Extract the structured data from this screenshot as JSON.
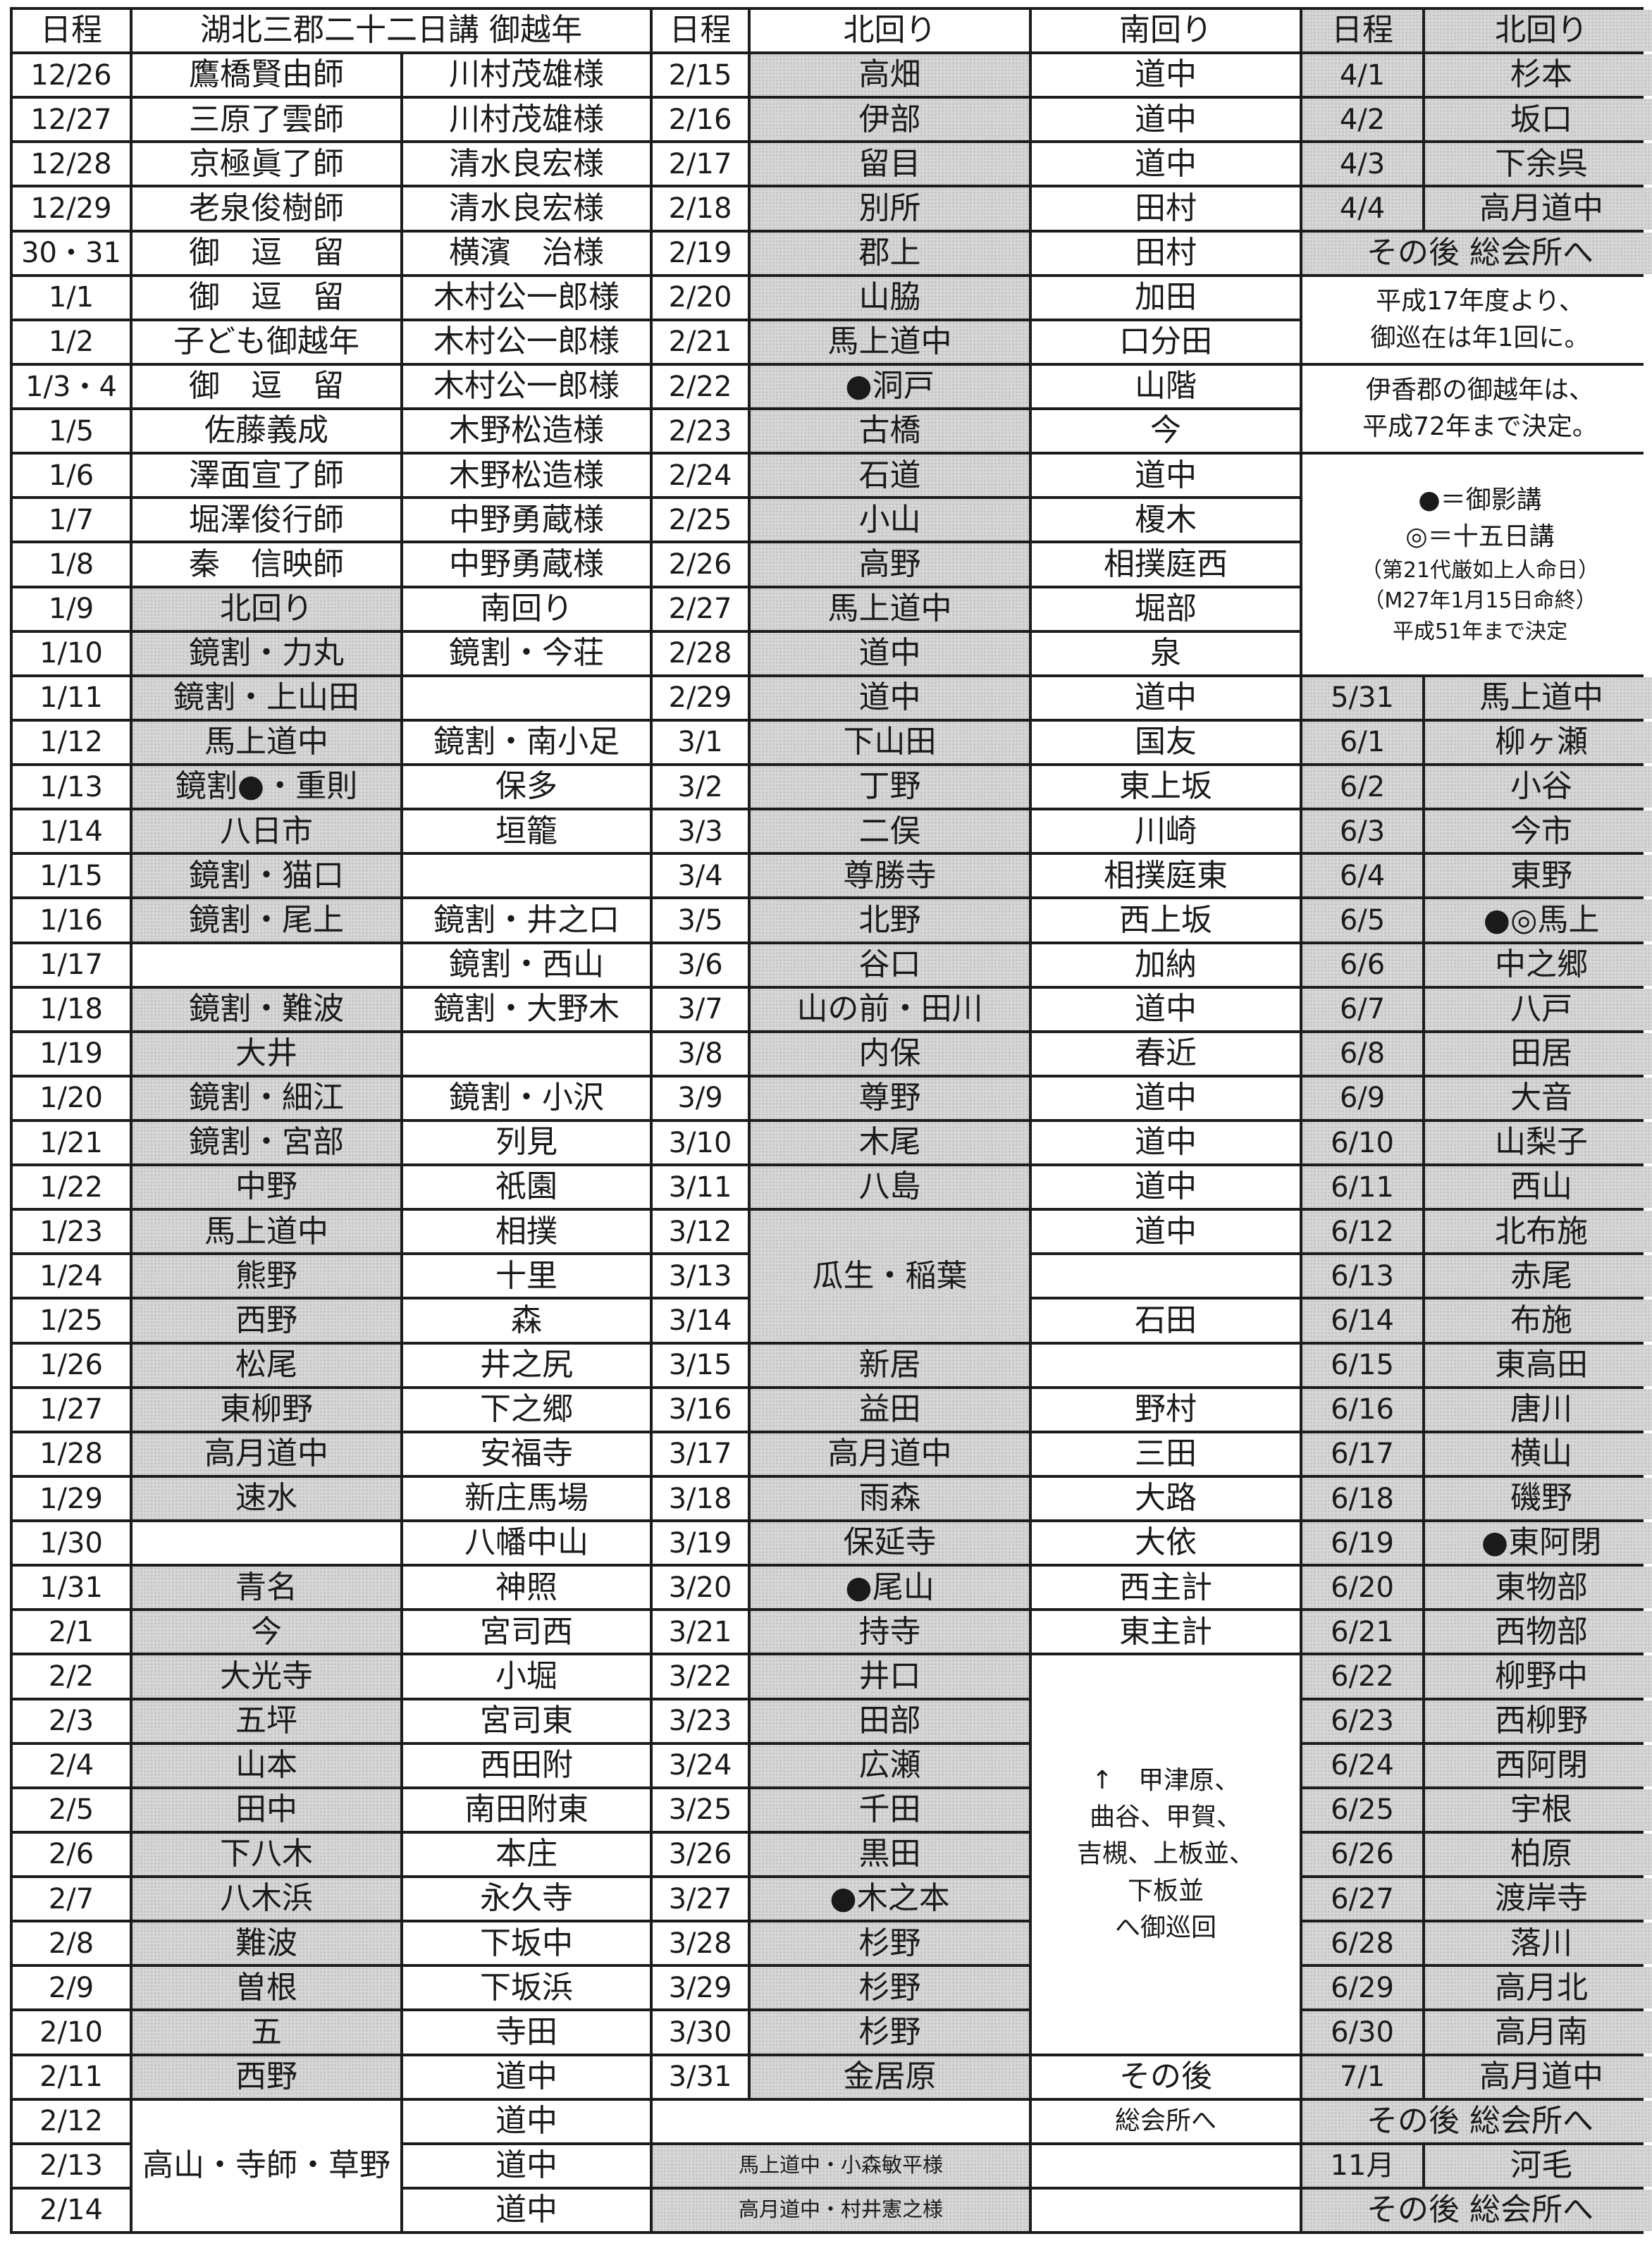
{
  "header": {
    "date": "日程",
    "title": "湖北三郡二十二日講 御越年",
    "date2": "日程",
    "north2": "北回り",
    "south2": "南回り",
    "date3": "日程",
    "north3": "北回り"
  },
  "left": {
    "top_rows": [
      {
        "date": "12/26",
        "host": "鷹橋賢由師",
        "sponsor": "川村茂雄様"
      },
      {
        "date": "12/27",
        "host": "三原了雲師",
        "sponsor": "川村茂雄様"
      },
      {
        "date": "12/28",
        "host": "京極眞了師",
        "sponsor": "清水良宏様"
      },
      {
        "date": "12/29",
        "host": "老泉俊樹師",
        "sponsor": "清水良宏様"
      },
      {
        "date": "30・31",
        "host": "御　逗　留",
        "sponsor": "横濱　治様"
      },
      {
        "date": "1/1",
        "host": "御　逗　留",
        "sponsor": "木村公一郎様"
      },
      {
        "date": "1/2",
        "host": "子ども御越年",
        "sponsor": "木村公一郎様"
      },
      {
        "date": "1/3・4",
        "host": "御　逗　留",
        "sponsor": "木村公一郎様"
      },
      {
        "date": "1/5",
        "host": "佐藤義成",
        "sponsor": "木野松造様"
      },
      {
        "date": "1/6",
        "host": "澤面宣了師",
        "sponsor": "木野松造様"
      },
      {
        "date": "1/7",
        "host": "堀澤俊行師",
        "sponsor": "中野勇蔵様"
      },
      {
        "date": "1/8",
        "host": "秦　信映師",
        "sponsor": "中野勇蔵様"
      }
    ],
    "subheader": {
      "date": "1/9",
      "north": "北回り",
      "south": "南回り"
    },
    "rows": [
      {
        "date": "1/10",
        "north": "鏡割・力丸",
        "south": "鏡割・今荘"
      },
      {
        "date": "1/11",
        "north": "鏡割・上山田",
        "south": ""
      },
      {
        "date": "1/12",
        "north": "馬上道中",
        "south": "鏡割・南小足"
      },
      {
        "date": "1/13",
        "north": "鏡割●・重則",
        "south": "保多"
      },
      {
        "date": "1/14",
        "north": "八日市",
        "south": "垣籠"
      },
      {
        "date": "1/15",
        "north": "鏡割・猫口",
        "south": ""
      },
      {
        "date": "1/16",
        "north": "鏡割・尾上",
        "south": "鏡割・井之口"
      },
      {
        "date": "1/17",
        "north": "",
        "south": "鏡割・西山"
      },
      {
        "date": "1/18",
        "north": "鏡割・難波",
        "south": "鏡割・大野木"
      },
      {
        "date": "1/19",
        "north": "大井",
        "south": ""
      },
      {
        "date": "1/20",
        "north": "鏡割・細江",
        "south": "鏡割・小沢"
      },
      {
        "date": "1/21",
        "north": "鏡割・宮部",
        "south": "列見"
      },
      {
        "date": "1/22",
        "north": "中野",
        "south": "祇園"
      },
      {
        "date": "1/23",
        "north": "馬上道中",
        "south": "相撲"
      },
      {
        "date": "1/24",
        "north": "熊野",
        "south": "十里"
      },
      {
        "date": "1/25",
        "north": "西野",
        "south": "森"
      },
      {
        "date": "1/26",
        "north": "松尾",
        "south": "井之尻"
      },
      {
        "date": "1/27",
        "north": "東柳野",
        "south": "下之郷"
      },
      {
        "date": "1/28",
        "north": "高月道中",
        "south": "安福寺"
      },
      {
        "date": "1/29",
        "north": "速水",
        "south": "新庄馬場"
      },
      {
        "date": "1/30",
        "north": "",
        "south": "八幡中山"
      },
      {
        "date": "1/31",
        "north": "青名",
        "south": "神照"
      },
      {
        "date": "2/1",
        "north": "今",
        "south": "宮司西"
      },
      {
        "date": "2/2",
        "north": "大光寺",
        "south": "小堀"
      },
      {
        "date": "2/3",
        "north": "五坪",
        "south": "宮司東"
      },
      {
        "date": "2/4",
        "north": "山本",
        "south": "西田附"
      },
      {
        "date": "2/5",
        "north": "田中",
        "south": "南田附東"
      },
      {
        "date": "2/6",
        "north": "下八木",
        "south": "本庄"
      },
      {
        "date": "2/7",
        "north": "八木浜",
        "south": "永久寺"
      },
      {
        "date": "2/8",
        "north": "難波",
        "south": "下坂中"
      },
      {
        "date": "2/9",
        "north": "曽根",
        "south": "下坂浜"
      },
      {
        "date": "2/10",
        "north": "五",
        "south": "寺田"
      },
      {
        "date": "2/11",
        "north": "西野",
        "south": "道中"
      },
      {
        "date": "2/12",
        "north": "",
        "south": "道中"
      },
      {
        "date": "2/13",
        "north": "",
        "south": "道中"
      },
      {
        "date": "2/14",
        "north": "",
        "south": "道中"
      }
    ],
    "merged_north": "高山・寺師・草野"
  },
  "middle": {
    "rows": [
      {
        "date": "2/15",
        "north": "高畑",
        "south": "道中"
      },
      {
        "date": "2/16",
        "north": "伊部",
        "south": "道中"
      },
      {
        "date": "2/17",
        "north": "留目",
        "south": "道中"
      },
      {
        "date": "2/18",
        "north": "別所",
        "south": "田村"
      },
      {
        "date": "2/19",
        "north": "郡上",
        "south": "田村"
      },
      {
        "date": "2/20",
        "north": "山脇",
        "south": "加田"
      },
      {
        "date": "2/21",
        "north": "馬上道中",
        "south": "口分田"
      },
      {
        "date": "2/22",
        "north": "●洞戸",
        "south": "山階"
      },
      {
        "date": "2/23",
        "north": "古橋",
        "south": "今"
      },
      {
        "date": "2/24",
        "north": "石道",
        "south": "道中"
      },
      {
        "date": "2/25",
        "north": "小山",
        "south": "榎木"
      },
      {
        "date": "2/26",
        "north": "高野",
        "south": "相撲庭西"
      },
      {
        "date": "2/27",
        "north": "馬上道中",
        "south": "堀部"
      },
      {
        "date": "2/28",
        "north": "道中",
        "south": "泉"
      },
      {
        "date": "2/29",
        "north": "道中",
        "south": "道中"
      },
      {
        "date": "3/1",
        "north": "下山田",
        "south": "国友"
      },
      {
        "date": "3/2",
        "north": "丁野",
        "south": "東上坂"
      },
      {
        "date": "3/3",
        "north": "二俣",
        "south": "川崎"
      },
      {
        "date": "3/4",
        "north": "尊勝寺",
        "south": "相撲庭東"
      },
      {
        "date": "3/5",
        "north": "北野",
        "south": "西上坂"
      },
      {
        "date": "3/6",
        "north": "谷口",
        "south": "加納"
      },
      {
        "date": "3/7",
        "north": "山の前・田川",
        "south": "道中"
      },
      {
        "date": "3/8",
        "north": "内保",
        "south": "春近"
      },
      {
        "date": "3/9",
        "north": "尊野",
        "south": "道中"
      },
      {
        "date": "3/10",
        "north": "木尾",
        "south": "道中"
      },
      {
        "date": "3/11",
        "north": "八島",
        "south": "道中"
      },
      {
        "date": "3/12",
        "north": "",
        "south": "道中"
      },
      {
        "date": "3/13",
        "north": "",
        "south": ""
      },
      {
        "date": "3/14",
        "north": "",
        "south": "石田"
      },
      {
        "date": "3/15",
        "north": "新居",
        "south": ""
      },
      {
        "date": "3/16",
        "north": "益田",
        "south": "野村"
      },
      {
        "date": "3/17",
        "north": "高月道中",
        "south": "三田"
      },
      {
        "date": "3/18",
        "north": "雨森",
        "south": "大路"
      },
      {
        "date": "3/19",
        "north": "保延寺",
        "south": "大依"
      },
      {
        "date": "3/20",
        "north": "●尾山",
        "south": "西主計"
      },
      {
        "date": "3/21",
        "north": "持寺",
        "south": "東主計"
      },
      {
        "date": "3/22",
        "north": "井口",
        "south": ""
      },
      {
        "date": "3/23",
        "north": "田部",
        "south": ""
      },
      {
        "date": "3/24",
        "north": "広瀬",
        "south": ""
      },
      {
        "date": "3/25",
        "north": "千田",
        "south": ""
      },
      {
        "date": "3/26",
        "north": "黒田",
        "south": ""
      },
      {
        "date": "3/27",
        "north": "●木之本",
        "south": ""
      },
      {
        "date": "3/28",
        "north": "杉野",
        "south": ""
      },
      {
        "date": "3/29",
        "north": "杉野",
        "south": ""
      },
      {
        "date": "3/30",
        "north": "杉野",
        "south": ""
      },
      {
        "date": "3/31",
        "north": "金居原",
        "south": "その後"
      }
    ],
    "merged_north": "瓜生・稲葉",
    "route_note": [
      "↑　甲津原、",
      "曲谷、甲賀、",
      "吉槻、上板並、",
      "下板並",
      "へ御巡回"
    ],
    "after_south": "総会所へ",
    "footer": [
      "馬上道中・小森敏平様",
      "高月道中・村井憲之様"
    ]
  },
  "right": {
    "april": [
      {
        "date": "4/1",
        "north": "杉本"
      },
      {
        "date": "4/2",
        "north": "坂口"
      },
      {
        "date": "4/3",
        "north": "下余呉"
      },
      {
        "date": "4/4",
        "north": "高月道中"
      }
    ],
    "after1": "その後 総会所へ",
    "note1": [
      "平成17年度より、",
      "御巡在は年1回に。"
    ],
    "note2": [
      "伊香郡の御越年は、",
      "平成72年まで決定。"
    ],
    "note3": [
      "●＝御影講",
      "◎＝十五日講",
      "（第21代厳如上人命日）",
      "（M27年1月15日命終）",
      "平成51年まで決定"
    ],
    "rows": [
      {
        "date": "5/31",
        "north": "馬上道中"
      },
      {
        "date": "6/1",
        "north": "柳ヶ瀬"
      },
      {
        "date": "6/2",
        "north": "小谷"
      },
      {
        "date": "6/3",
        "north": "今市"
      },
      {
        "date": "6/4",
        "north": "東野"
      },
      {
        "date": "6/5",
        "north": "●◎馬上"
      },
      {
        "date": "6/6",
        "north": "中之郷"
      },
      {
        "date": "6/7",
        "north": "八戸"
      },
      {
        "date": "6/8",
        "north": "田居"
      },
      {
        "date": "6/9",
        "north": "大音"
      },
      {
        "date": "6/10",
        "north": "山梨子"
      },
      {
        "date": "6/11",
        "north": "西山"
      },
      {
        "date": "6/12",
        "north": "北布施"
      },
      {
        "date": "6/13",
        "north": "赤尾"
      },
      {
        "date": "6/14",
        "north": "布施"
      },
      {
        "date": "6/15",
        "north": "東高田"
      },
      {
        "date": "6/16",
        "north": "唐川"
      },
      {
        "date": "6/17",
        "north": "横山"
      },
      {
        "date": "6/18",
        "north": "磯野"
      },
      {
        "date": "6/19",
        "north": "●東阿閉"
      },
      {
        "date": "6/20",
        "north": "東物部"
      },
      {
        "date": "6/21",
        "north": "西物部"
      },
      {
        "date": "6/22",
        "north": "柳野中"
      },
      {
        "date": "6/23",
        "north": "西柳野"
      },
      {
        "date": "6/24",
        "north": "西阿閉"
      },
      {
        "date": "6/25",
        "north": "宇根"
      },
      {
        "date": "6/26",
        "north": "柏原"
      },
      {
        "date": "6/27",
        "north": "渡岸寺"
      },
      {
        "date": "6/28",
        "north": "落川"
      },
      {
        "date": "6/29",
        "north": "高月北"
      },
      {
        "date": "6/30",
        "north": "高月南"
      },
      {
        "date": "7/1",
        "north": "高月道中"
      }
    ],
    "after2": "その後 総会所へ",
    "november": {
      "date": "11月",
      "north": "河毛"
    },
    "after3": "その後 総会所へ"
  }
}
